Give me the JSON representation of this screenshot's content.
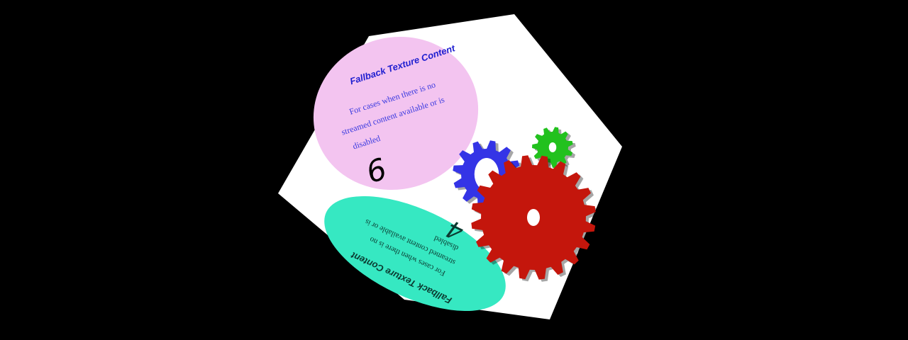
{
  "scene": {
    "background_color": "#000000",
    "cube_face_color": "#ffffff"
  },
  "face_top": {
    "ellipse_color": "#f3c4f0",
    "title": "Fallback Texture Content",
    "body_lines": [
      "For cases when there is no",
      "streamed content available or is",
      "disabled"
    ],
    "number": "6",
    "title_color": "#1f1fd0",
    "body_color": "#3a3adf"
  },
  "face_bottom": {
    "ellipse_color": "#36e8c2",
    "title": "Fallback Texture Content",
    "body_lines": [
      "For cases when there is no",
      "streamed content available or is",
      "disabled"
    ],
    "number": "4",
    "text_color": "#0b3a30"
  },
  "face_right": {
    "gears": [
      {
        "name": "blue-gear",
        "color": "#3434e6",
        "teeth": 12
      },
      {
        "name": "green-gear",
        "color": "#22c11e",
        "teeth": 11
      },
      {
        "name": "red-gear",
        "color": "#c4160c",
        "teeth": 20
      }
    ]
  }
}
